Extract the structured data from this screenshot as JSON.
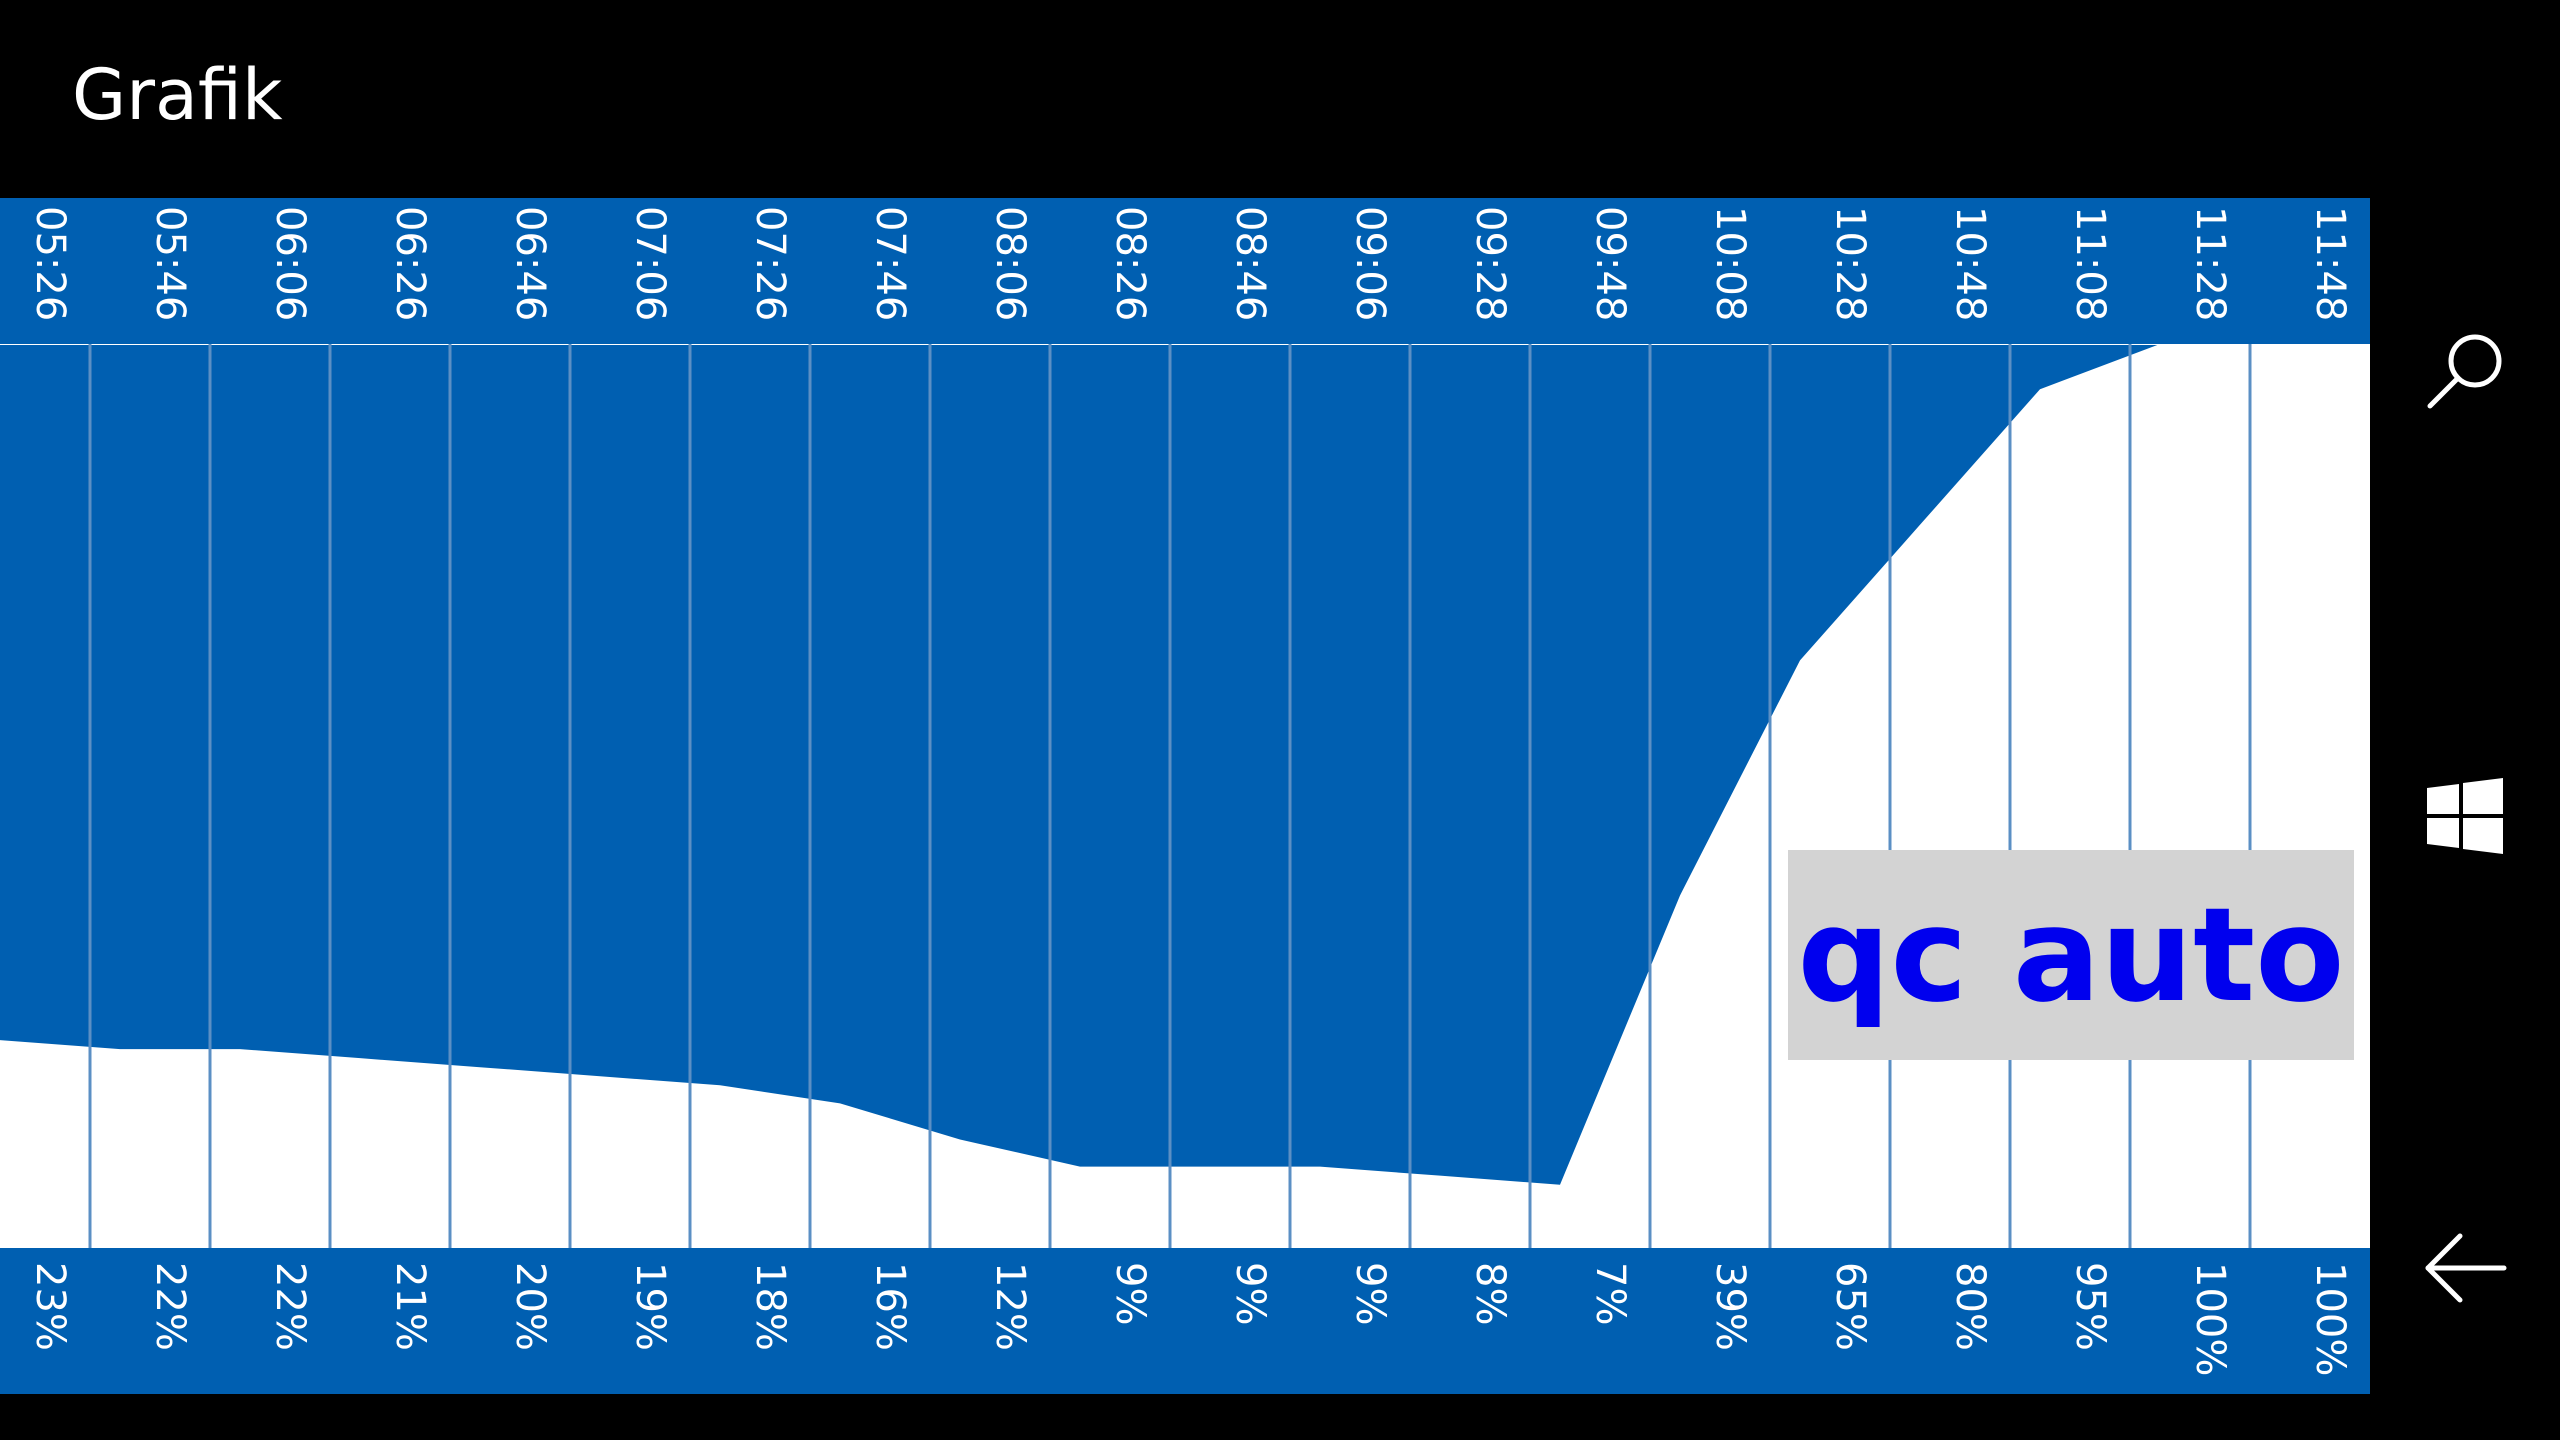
{
  "header": {
    "title": "Grafik"
  },
  "colors": {
    "band": "#005fb1",
    "grid": "#ffffff",
    "fill_above": "#005fb1",
    "fill_below": "#ffffff",
    "badge_bg": "#d3d3d3",
    "badge_text": "#0000ee"
  },
  "badge": {
    "label": "qc auto"
  },
  "nav": {
    "search_icon": "search-icon",
    "windows_icon": "windows-logo-icon",
    "back_icon": "back-arrow-icon"
  },
  "chart_data": {
    "type": "area",
    "title": "",
    "xlabel": "",
    "ylabel": "",
    "ylim": [
      0,
      100
    ],
    "grid": true,
    "categories": [
      "05:26",
      "05:46",
      "06:06",
      "06:26",
      "06:46",
      "07:06",
      "07:26",
      "07:46",
      "08:06",
      "08:26",
      "08:46",
      "09:06",
      "09:28",
      "09:48",
      "10:08",
      "10:28",
      "10:48",
      "11:08",
      "11:28",
      "11:48"
    ],
    "values": [
      23,
      22,
      22,
      21,
      20,
      19,
      18,
      16,
      12,
      9,
      9,
      9,
      8,
      7,
      39,
      65,
      80,
      95,
      100,
      100
    ],
    "value_labels": [
      "23%",
      "22%",
      "22%",
      "21%",
      "20%",
      "19%",
      "18%",
      "16%",
      "12%",
      "9%",
      "9%",
      "9%",
      "8%",
      "7%",
      "39%",
      "65%",
      "80%",
      "95%",
      "100%",
      "100%"
    ]
  }
}
